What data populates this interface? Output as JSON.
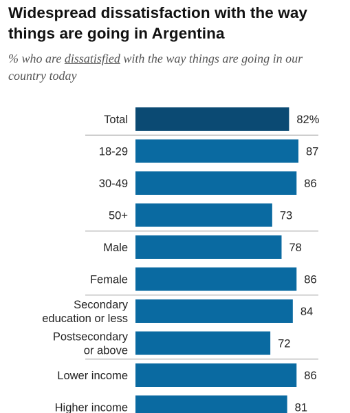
{
  "title": "Widespread dissatisfaction with the way things are going in Argentina",
  "subtitle": {
    "prefix": "% who are ",
    "emphasis": "dissatisfied",
    "suffix": " with the way things are going in our country today"
  },
  "colors": {
    "total_bar": "#0b4a73",
    "bar": "#0a6aa1",
    "divider": "#9a9a9a"
  },
  "chart_data": {
    "type": "bar",
    "orientation": "horizontal",
    "categories": [
      [
        "Total"
      ],
      [
        "18-29"
      ],
      [
        "30-49"
      ],
      [
        "50+"
      ],
      [
        "Male"
      ],
      [
        "Female"
      ],
      [
        "Secondary",
        "education or less"
      ],
      [
        "Postsecondary",
        "or above"
      ],
      [
        "Lower income"
      ],
      [
        "Higher income"
      ]
    ],
    "values": [
      82,
      87,
      86,
      73,
      78,
      86,
      84,
      72,
      86,
      81
    ],
    "value_labels": [
      "82%",
      "87",
      "86",
      "73",
      "78",
      "86",
      "84",
      "72",
      "86",
      "81"
    ],
    "group_ends_after": [
      0,
      3,
      5,
      7
    ],
    "xlim": [
      0,
      100
    ],
    "title": "Widespread dissatisfaction with the way things are going in Argentina",
    "xlabel": "",
    "ylabel": ""
  }
}
